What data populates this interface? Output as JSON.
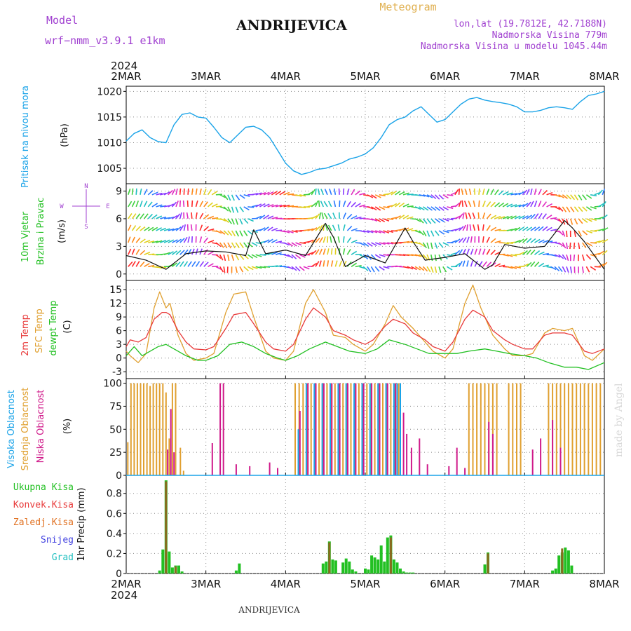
{
  "header": {
    "model_label": "Model",
    "model_name": "wrf−nmm_v3.9.1  e1km",
    "station": "ANDRIJEVICA",
    "meteogram": "Meteogram",
    "lonlat": "lon,lat (19.7812E, 42.7188N)",
    "elevation": "Nadmorska Visina 779m",
    "elevation_model": "Nadmorska Visina u modelu 1045.44m",
    "year_top": "2024",
    "year_bottom": "2024",
    "footer": "ANDRIJEVICA",
    "credit": "made by Angel"
  },
  "colors": {
    "pressure": "#1aa3e8",
    "t2m": "#e83a3a",
    "sfc": "#e0a030",
    "dew": "#22c022",
    "high_cloud": "#1aa3e8",
    "mid_cloud": "#e0a030",
    "low_cloud": "#d01a8a",
    "total_precip": "#22c022",
    "conv_precip": "#e83a3a",
    "frozen_precip": "#e07020",
    "snow": "#4040e0",
    "graupel": "#22c0c0",
    "ylabel_purple": "#a040d0"
  },
  "chart_data": [
    {
      "type": "line",
      "panel": "pressure",
      "ylabel_main": "Pritisak na nivou mora",
      "ylabel_unit": "(hPa)",
      "x_ticks": [
        "2MAR",
        "3MAR",
        "4MAR",
        "5MAR",
        "6MAR",
        "7MAR",
        "8MAR"
      ],
      "ylim": [
        1002,
        1021
      ],
      "yticks": [
        1005,
        1010,
        1015,
        1020
      ],
      "grid": true,
      "series": [
        {
          "x": [
            0,
            0.1,
            0.2,
            0.3,
            0.4,
            0.5,
            0.6,
            0.7,
            0.8,
            0.9,
            1.0,
            1.1,
            1.2,
            1.3,
            1.4,
            1.5,
            1.6,
            1.7,
            1.8,
            1.9,
            2.0,
            2.1,
            2.2,
            2.3,
            2.4,
            2.5,
            2.6,
            2.7,
            2.8,
            2.9,
            3.0,
            3.1,
            3.2,
            3.3,
            3.4,
            3.5,
            3.6,
            3.7,
            3.8,
            3.9,
            4.0,
            4.1,
            4.2,
            4.3,
            4.4,
            4.5,
            4.6,
            4.7,
            4.8,
            4.9,
            5.0,
            5.1,
            5.2,
            5.3,
            5.4,
            5.5,
            5.6,
            5.7,
            5.8,
            5.9,
            6.0
          ],
          "y": [
            1010.3,
            1011.8,
            1012.5,
            1011.0,
            1010.2,
            1010.0,
            1013.5,
            1015.5,
            1015.8,
            1015.0,
            1014.8,
            1013.0,
            1011.0,
            1010.0,
            1011.5,
            1013.0,
            1013.2,
            1012.5,
            1011.0,
            1008.5,
            1006.0,
            1004.5,
            1003.8,
            1004.2,
            1004.8,
            1005.0,
            1005.5,
            1006.0,
            1006.8,
            1007.2,
            1007.8,
            1009.0,
            1011.0,
            1013.5,
            1014.5,
            1015.0,
            1016.2,
            1017.0,
            1015.5,
            1014.0,
            1014.5,
            1016.0,
            1017.5,
            1018.5,
            1018.8,
            1018.3,
            1018.0,
            1017.8,
            1017.5,
            1017.0,
            1016.0,
            1016.0,
            1016.3,
            1016.8,
            1017.0,
            1016.8,
            1016.5,
            1018.0,
            1019.2,
            1019.5,
            1020.0
          ]
        }
      ]
    },
    {
      "type": "line",
      "panel": "wind",
      "ylabel_main": "10m Vjetar",
      "ylabel_sub": "Brzina i Pravac",
      "ylabel_unit": "(m/s)",
      "compass_n": "N",
      "compass_s": "S",
      "compass_w": "W",
      "compass_e": "E",
      "ylim": [
        -0.7,
        9.8
      ],
      "yticks": [
        0,
        3,
        6,
        9
      ],
      "grid": true,
      "series": [
        {
          "name": "10m wind speed",
          "x": [
            0,
            0.25,
            0.5,
            0.75,
            1.0,
            1.25,
            1.5,
            1.6,
            1.75,
            2.0,
            2.25,
            2.5,
            2.6,
            2.75,
            3.0,
            3.25,
            3.5,
            3.6,
            3.75,
            4.0,
            4.25,
            4.5,
            4.6,
            4.75,
            5.0,
            5.25,
            5.5,
            5.6,
            5.75,
            6.0
          ],
          "y": [
            2.0,
            1.5,
            0.5,
            2.2,
            2.5,
            2.4,
            2.0,
            4.8,
            2.2,
            2.6,
            2.0,
            5.5,
            4.0,
            0.8,
            2.0,
            1.2,
            5.0,
            3.5,
            1.5,
            1.8,
            2.2,
            0.5,
            1.0,
            3.2,
            2.8,
            3.0,
            5.8,
            5.0,
            3.5,
            0.5
          ]
        }
      ]
    },
    {
      "type": "line",
      "panel": "temperature",
      "ylabel_a": "2m Temp",
      "ylabel_b": "SFC Temp",
      "ylabel_c": "dewpt Temp",
      "ylabel_unit": "(C)",
      "ylim": [
        -4.5,
        17
      ],
      "yticks": [
        -3,
        0,
        3,
        6,
        9,
        12,
        15
      ],
      "grid": true,
      "series": [
        {
          "name": "2m Temp",
          "x": [
            0,
            0.05,
            0.15,
            0.25,
            0.35,
            0.45,
            0.5,
            0.55,
            0.65,
            0.75,
            0.85,
            1.0,
            1.1,
            1.25,
            1.35,
            1.5,
            1.6,
            1.75,
            1.85,
            2.0,
            2.1,
            2.25,
            2.35,
            2.5,
            2.6,
            2.75,
            2.85,
            3.0,
            3.1,
            3.25,
            3.35,
            3.5,
            3.6,
            3.75,
            3.85,
            4.0,
            4.1,
            4.25,
            4.35,
            4.5,
            4.6,
            4.75,
            4.85,
            5.0,
            5.1,
            5.25,
            5.35,
            5.5,
            5.6,
            5.75,
            5.85,
            6.0
          ],
          "y": [
            2.5,
            4.0,
            3.5,
            4.5,
            8.5,
            10.0,
            10.0,
            9.5,
            6.0,
            3.5,
            2.0,
            1.8,
            2.5,
            6.5,
            9.5,
            10.0,
            7.5,
            3.5,
            2.0,
            1.5,
            3.0,
            8.5,
            11.0,
            9.0,
            6.0,
            5.0,
            4.0,
            3.0,
            4.0,
            7.0,
            8.5,
            7.5,
            5.5,
            4.0,
            2.5,
            1.5,
            3.5,
            8.5,
            10.5,
            9.0,
            6.0,
            4.0,
            3.0,
            2.0,
            2.0,
            5.0,
            5.5,
            5.5,
            5.0,
            1.5,
            1.0,
            2.0
          ]
        },
        {
          "name": "SFC Temp",
          "x": [
            0,
            0.05,
            0.15,
            0.25,
            0.35,
            0.42,
            0.5,
            0.55,
            0.65,
            0.75,
            0.85,
            1.0,
            1.1,
            1.25,
            1.35,
            1.5,
            1.6,
            1.75,
            1.85,
            2.0,
            2.1,
            2.25,
            2.35,
            2.5,
            2.6,
            2.75,
            2.85,
            3.0,
            3.1,
            3.25,
            3.35,
            3.45,
            3.6,
            3.75,
            3.85,
            4.0,
            4.1,
            4.25,
            4.35,
            4.45,
            4.6,
            4.75,
            4.85,
            5.0,
            5.1,
            5.25,
            5.35,
            5.5,
            5.6,
            5.75,
            5.85,
            6.0
          ],
          "y": [
            1.5,
            0.5,
            -1.0,
            1.0,
            11.0,
            14.5,
            11.0,
            12.0,
            5.0,
            1.0,
            -0.5,
            0.0,
            1.0,
            10.0,
            14.0,
            14.5,
            9.0,
            1.5,
            0.0,
            -0.5,
            1.5,
            12.0,
            15.0,
            10.0,
            5.0,
            4.5,
            3.0,
            1.5,
            3.0,
            7.5,
            11.5,
            9.0,
            6.5,
            3.5,
            1.5,
            0.0,
            2.0,
            12.0,
            16.0,
            11.0,
            5.0,
            2.0,
            0.5,
            0.5,
            1.0,
            5.5,
            6.5,
            6.0,
            6.5,
            0.5,
            -0.5,
            2.0
          ]
        },
        {
          "name": "dewpt Temp",
          "x": [
            0,
            0.1,
            0.2,
            0.3,
            0.4,
            0.5,
            0.6,
            0.75,
            0.9,
            1.0,
            1.15,
            1.3,
            1.45,
            1.6,
            1.75,
            1.9,
            2.0,
            2.15,
            2.3,
            2.5,
            2.65,
            2.8,
            3.0,
            3.15,
            3.3,
            3.5,
            3.65,
            3.8,
            4.0,
            4.15,
            4.3,
            4.5,
            4.65,
            4.8,
            5.0,
            5.15,
            5.3,
            5.5,
            5.65,
            5.8,
            6.0
          ],
          "y": [
            0.5,
            2.5,
            0.5,
            1.5,
            2.5,
            3.0,
            2.0,
            0.5,
            -0.5,
            -0.5,
            0.5,
            3.0,
            3.5,
            2.5,
            1.0,
            0.0,
            -0.5,
            0.5,
            2.0,
            3.5,
            2.5,
            1.5,
            1.0,
            2.0,
            4.0,
            3.0,
            2.0,
            1.0,
            1.0,
            1.0,
            1.5,
            2.0,
            1.5,
            1.0,
            0.5,
            0.0,
            -1.0,
            -2.0,
            -2.0,
            -2.5,
            -1.0
          ]
        }
      ]
    },
    {
      "type": "bar",
      "panel": "cloud",
      "ylabel_a": "Visoka Oblacnost",
      "ylabel_b": "Srednja Oblacnost",
      "ylabel_c": "Niska Oblacnost",
      "ylabel_unit": "(%)",
      "ylim": [
        0,
        105
      ],
      "yticks": [
        0,
        25,
        50,
        75,
        100
      ],
      "grid": true,
      "series": [
        {
          "name": "Srednja Oblacnost",
          "x": [
            0.02,
            0.06,
            0.1,
            0.14,
            0.18,
            0.22,
            0.26,
            0.3,
            0.34,
            0.38,
            0.42,
            0.46,
            0.5,
            0.54,
            0.58,
            0.62,
            0.68,
            0.72,
            2.12,
            2.17,
            2.22,
            2.27,
            2.32,
            2.37,
            2.42,
            2.47,
            2.52,
            2.57,
            2.62,
            2.67,
            2.72,
            2.77,
            2.82,
            2.87,
            2.92,
            2.97,
            3.02,
            3.07,
            3.12,
            3.17,
            3.22,
            3.27,
            3.32,
            3.37,
            3.42,
            4.3,
            4.35,
            4.4,
            4.45,
            4.5,
            4.55,
            4.6,
            4.65,
            4.8,
            4.85,
            4.9,
            4.95,
            5.3,
            5.35,
            5.4,
            5.45,
            5.5,
            5.55,
            5.6,
            5.65,
            5.7,
            5.75,
            5.8,
            5.85,
            5.9,
            5.95
          ],
          "y": [
            36,
            100,
            100,
            100,
            100,
            100,
            100,
            97,
            100,
            100,
            100,
            100,
            90,
            40,
            100,
            100,
            30,
            5,
            100,
            100,
            100,
            100,
            100,
            100,
            100,
            100,
            100,
            100,
            100,
            100,
            100,
            100,
            100,
            100,
            100,
            100,
            100,
            100,
            100,
            100,
            100,
            100,
            100,
            100,
            100,
            100,
            100,
            100,
            100,
            100,
            100,
            100,
            100,
            100,
            100,
            100,
            100,
            100,
            100,
            100,
            100,
            100,
            100,
            100,
            100,
            100,
            100,
            100,
            100,
            100,
            100
          ]
        },
        {
          "name": "Visoka Oblacnost",
          "x": [
            2.16,
            2.26,
            2.36,
            2.46,
            2.56,
            2.66,
            2.76,
            2.86,
            2.96,
            3.06,
            3.16,
            3.26,
            3.36,
            3.4,
            3.44
          ],
          "y": [
            50,
            100,
            100,
            100,
            100,
            100,
            100,
            100,
            100,
            100,
            100,
            100,
            100,
            100,
            100
          ]
        },
        {
          "name": "Niska Oblacnost",
          "x": [
            0.52,
            0.56,
            0.6,
            1.08,
            1.18,
            1.22,
            1.38,
            1.55,
            1.8,
            1.9,
            2.18,
            2.28,
            2.38,
            2.48,
            2.58,
            2.68,
            2.78,
            2.88,
            2.98,
            3.08,
            3.18,
            3.28,
            3.38,
            3.48,
            3.52,
            3.58,
            3.68,
            3.78,
            4.05,
            4.15,
            4.25,
            4.55,
            4.6,
            5.1,
            5.2,
            5.35,
            5.45
          ],
          "y": [
            28,
            72,
            25,
            35,
            100,
            100,
            12,
            10,
            14,
            8,
            70,
            100,
            100,
            100,
            100,
            100,
            100,
            100,
            100,
            100,
            100,
            100,
            100,
            68,
            45,
            30,
            40,
            12,
            10,
            30,
            8,
            58,
            45,
            28,
            40,
            60,
            30
          ]
        }
      ]
    },
    {
      "type": "bar",
      "panel": "precipitation",
      "ylabel_unit": "1hr Precip (mm)",
      "legend": [
        "Ukupna Kisa",
        "Konvek.Kisa",
        "Zaledj.Kisa",
        "Snijeg",
        "Grad"
      ],
      "ylim": [
        0,
        0.98
      ],
      "yticks": [
        0,
        0.2,
        0.4,
        0.6,
        0.8
      ],
      "grid": true,
      "series": [
        {
          "name": "Ukupna Kisa",
          "x": [
            0.42,
            0.46,
            0.5,
            0.54,
            0.58,
            0.62,
            0.66,
            0.7,
            1.38,
            1.42,
            2.47,
            2.51,
            2.55,
            2.59,
            2.63,
            2.72,
            2.76,
            2.8,
            2.84,
            2.88,
            3.0,
            3.04,
            3.08,
            3.12,
            3.16,
            3.2,
            3.24,
            3.28,
            3.32,
            3.36,
            3.4,
            3.44,
            3.48,
            3.52,
            3.56,
            3.6,
            4.5,
            4.54,
            5.35,
            5.39,
            5.43,
            5.47,
            5.51,
            5.55,
            5.59
          ],
          "y": [
            0.03,
            0.24,
            0.93,
            0.22,
            0.06,
            0.08,
            0.08,
            0.02,
            0.03,
            0.1,
            0.1,
            0.12,
            0.32,
            0.14,
            0.13,
            0.11,
            0.15,
            0.12,
            0.04,
            0.02,
            0.05,
            0.04,
            0.18,
            0.16,
            0.14,
            0.28,
            0.12,
            0.36,
            0.38,
            0.14,
            0.11,
            0.05,
            0.02,
            0.01,
            0.01,
            0.01,
            0.09,
            0.21,
            0.03,
            0.05,
            0.18,
            0.21,
            0.26,
            0.23,
            0.08
          ]
        },
        {
          "name": "Konvek.Kisa",
          "x": [
            0.5,
            0.62,
            2.55,
            3.32,
            4.54,
            5.47
          ],
          "y": [
            0.92,
            0.07,
            0.31,
            0.36,
            0.2,
            0.25
          ]
        }
      ]
    }
  ]
}
